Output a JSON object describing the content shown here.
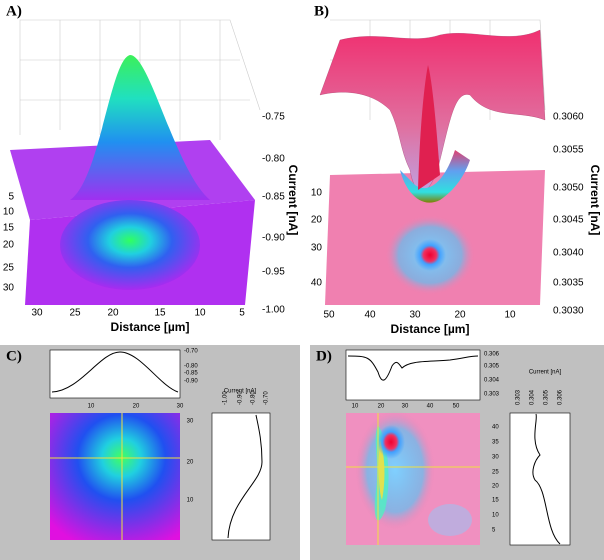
{
  "panels": [
    {
      "label": "A)",
      "z_axis_title": "Current [nA]",
      "z_ticks": [
        "-0.75",
        "-0.80",
        "-0.85",
        "-0.90",
        "-0.95",
        "-1.00"
      ],
      "y_ticks": [
        "5",
        "10",
        "15",
        "20",
        "25",
        "30"
      ],
      "x_ticks": [
        "30",
        "25",
        "20",
        "15",
        "10",
        "5"
      ],
      "x_axis_title": "Distance [µm]"
    },
    {
      "label": "B)",
      "z_axis_title": "Current [nA]",
      "z_ticks": [
        "0.3060",
        "0.3055",
        "0.3050",
        "0.3045",
        "0.3040",
        "0.3035",
        "0.3030"
      ],
      "y_ticks": [
        "10",
        "20",
        "30",
        "40"
      ],
      "x_ticks": [
        "50",
        "40",
        "30",
        "20",
        "10"
      ],
      "x_axis_title": "Distance [µm]"
    },
    {
      "label": "C)",
      "profile_y_title": "Current [nA]",
      "profile_y_ticks": [
        "-0.70",
        "-0.80",
        "-0.85",
        "-0.90"
      ],
      "profile_x_ticks": [
        "10",
        "20",
        "30"
      ],
      "map_y_ticks": [
        "30",
        "20",
        "10"
      ],
      "side_profile_ticks": [
        "-1.00",
        "-0.90",
        "-0.80",
        "-0.70"
      ]
    },
    {
      "label": "D)",
      "profile_y_title": "Current [nA]",
      "profile_y_ticks": [
        "0.306",
        "0.305",
        "0.304",
        "0.303"
      ],
      "profile_x_ticks": [
        "10",
        "20",
        "30",
        "40",
        "50"
      ],
      "map_y_ticks": [
        "40",
        "35",
        "30",
        "25",
        "20",
        "15",
        "10",
        "5"
      ],
      "side_profile_ticks": [
        "0.303",
        "0.304",
        "0.305",
        "0.306"
      ]
    }
  ]
}
